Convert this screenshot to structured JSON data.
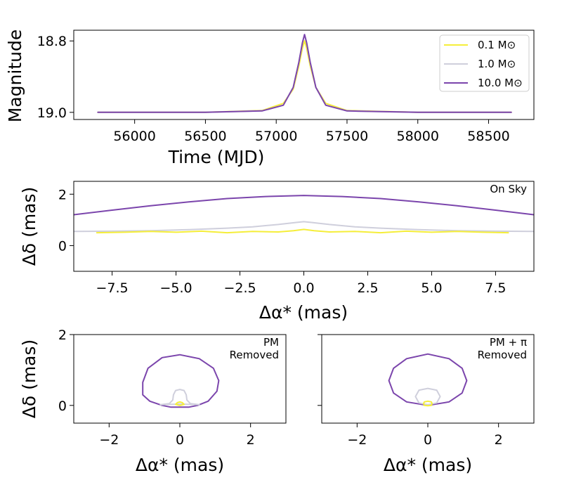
{
  "colors": {
    "m01": "#f5ee3a",
    "m1": "#cfcfdc",
    "m10": "#7b45ac"
  },
  "chart_data": [
    {
      "id": "lightcurve",
      "type": "line",
      "ylabel": "Magnitude",
      "xlabel": "Time (MJD)",
      "xlim": [
        55570,
        58820
      ],
      "ylim": [
        19.02,
        18.77
      ],
      "xticks": [
        {
          "v": 56000,
          "label": "56000"
        },
        {
          "v": 56500,
          "label": "56500"
        },
        {
          "v": 57000,
          "label": "57000"
        },
        {
          "v": 57500,
          "label": "57500"
        },
        {
          "v": 58000,
          "label": "58000"
        },
        {
          "v": 58500,
          "label": "58500"
        }
      ],
      "yticks": [
        {
          "v": 18.8,
          "label": "18.8"
        },
        {
          "v": 19.0,
          "label": "19.0"
        }
      ],
      "legend": {
        "position": "top-right"
      },
      "series": [
        {
          "name": "0.1 M⊙",
          "color_key": "m01",
          "x": [
            55740,
            56500,
            56900,
            57050,
            57120,
            57160,
            57185,
            57200,
            57215,
            57240,
            57280,
            57350,
            57500,
            58000,
            58660
          ],
          "y": [
            19.0,
            19.0,
            18.995,
            18.975,
            18.935,
            18.87,
            18.82,
            18.8,
            18.82,
            18.87,
            18.93,
            18.975,
            18.995,
            19.0,
            19.0
          ]
        },
        {
          "name": "1.0 M⊙",
          "color_key": "m1",
          "x": [
            55740,
            56500,
            56900,
            57050,
            57120,
            57160,
            57185,
            57200,
            57215,
            57240,
            57280,
            57350,
            57500,
            58000,
            58660
          ],
          "y": [
            19.0,
            19.0,
            18.996,
            18.98,
            18.93,
            18.86,
            18.805,
            18.782,
            18.805,
            18.86,
            18.93,
            18.98,
            18.996,
            19.0,
            19.0
          ]
        },
        {
          "name": "10.0 M⊙",
          "color_key": "m10",
          "x": [
            55740,
            56500,
            56900,
            57050,
            57120,
            57160,
            57185,
            57200,
            57215,
            57240,
            57280,
            57350,
            57500,
            58000,
            58660
          ],
          "y": [
            19.0,
            19.0,
            18.996,
            18.98,
            18.93,
            18.86,
            18.805,
            18.782,
            18.805,
            18.86,
            18.93,
            18.98,
            18.996,
            19.0,
            19.0
          ]
        }
      ]
    },
    {
      "id": "onsky",
      "type": "line",
      "ylabel": "Δδ (mas)",
      "xlabel": "Δα* (mas)",
      "xlim": [
        -9,
        9
      ],
      "ylim": [
        -1,
        2.5
      ],
      "xticks": [
        {
          "v": -7.5,
          "label": "−7.5"
        },
        {
          "v": -5,
          "label": "−5.0"
        },
        {
          "v": -2.5,
          "label": "−2.5"
        },
        {
          "v": 0,
          "label": "0.0"
        },
        {
          "v": 2.5,
          "label": "2.5"
        },
        {
          "v": 5,
          "label": "5.0"
        },
        {
          "v": 7.5,
          "label": "7.5"
        }
      ],
      "yticks": [
        {
          "v": 0,
          "label": "0"
        },
        {
          "v": 2,
          "label": "2"
        }
      ],
      "annotation": "On Sky",
      "series": [
        {
          "color_key": "m10",
          "x": [
            -9,
            -7.5,
            -6,
            -4.5,
            -3,
            -1.5,
            0,
            1.5,
            3,
            4.5,
            6,
            7.5,
            9
          ],
          "y": [
            1.2,
            1.38,
            1.55,
            1.7,
            1.83,
            1.91,
            1.95,
            1.91,
            1.83,
            1.7,
            1.55,
            1.38,
            1.2
          ]
        },
        {
          "color_key": "m1",
          "x": [
            -9,
            -7.5,
            -6,
            -4.5,
            -3,
            -2,
            -1,
            -0.3,
            0,
            0.3,
            1,
            2,
            3,
            4.5,
            6,
            7.5,
            9
          ],
          "y": [
            0.55,
            0.56,
            0.58,
            0.62,
            0.68,
            0.73,
            0.82,
            0.9,
            0.93,
            0.9,
            0.82,
            0.73,
            0.68,
            0.62,
            0.58,
            0.56,
            0.55
          ]
        },
        {
          "color_key": "m01",
          "x": [
            -8.1,
            -7,
            -6,
            -5,
            -4,
            -3,
            -2,
            -1,
            -0.4,
            0,
            0.4,
            1,
            2,
            3,
            4,
            5,
            6,
            7,
            8
          ],
          "y": [
            0.5,
            0.52,
            0.55,
            0.52,
            0.56,
            0.5,
            0.55,
            0.53,
            0.58,
            0.63,
            0.58,
            0.53,
            0.55,
            0.5,
            0.56,
            0.52,
            0.55,
            0.52,
            0.5
          ]
        }
      ]
    },
    {
      "id": "pm_removed",
      "type": "line",
      "ylabel": "Δδ (mas)",
      "xlabel": "Δα* (mas)",
      "xlim": [
        -3,
        3
      ],
      "ylim": [
        -0.5,
        2
      ],
      "xticks": [
        {
          "v": -2,
          "label": "−2"
        },
        {
          "v": 0,
          "label": "0"
        },
        {
          "v": 2,
          "label": "2"
        }
      ],
      "yticks": [
        {
          "v": 0,
          "label": "0"
        },
        {
          "v": 2,
          "label": "2"
        }
      ],
      "annotation": [
        "PM",
        "Removed"
      ],
      "series": [
        {
          "color_key": "m10",
          "closed": true,
          "x": [
            0.0,
            0.55,
            0.95,
            1.1,
            1.05,
            0.8,
            0.5,
            0.25,
            0.0,
            -0.25,
            -0.5,
            -0.85,
            -1.05,
            -1.05,
            -0.9,
            -0.5,
            0.0
          ],
          "y": [
            1.43,
            1.32,
            1.05,
            0.7,
            0.4,
            0.12,
            0.0,
            -0.05,
            -0.05,
            -0.05,
            0.0,
            0.12,
            0.3,
            0.65,
            1.05,
            1.35,
            1.43
          ]
        },
        {
          "color_key": "m1",
          "closed": true,
          "x": [
            0.0,
            0.12,
            0.18,
            0.2,
            0.3,
            0.55,
            0.2,
            0.0,
            -0.2,
            -0.55,
            -0.3,
            -0.2,
            -0.18,
            -0.12,
            0.0
          ],
          "y": [
            0.45,
            0.42,
            0.3,
            0.15,
            0.05,
            0.02,
            0.03,
            0.04,
            0.03,
            0.02,
            0.05,
            0.15,
            0.3,
            0.42,
            0.45
          ]
        },
        {
          "color_key": "m01",
          "closed": true,
          "x": [
            0.0,
            0.07,
            0.12,
            0.05,
            0.0,
            -0.05,
            -0.12,
            -0.07,
            0.0
          ],
          "y": [
            0.1,
            0.08,
            0.03,
            0.01,
            0.0,
            0.01,
            0.03,
            0.08,
            0.1
          ]
        }
      ]
    },
    {
      "id": "pm_pi_removed",
      "type": "line",
      "xlabel": "Δα* (mas)",
      "xlim": [
        -3,
        3
      ],
      "ylim": [
        -0.5,
        2
      ],
      "xticks": [
        {
          "v": -2,
          "label": "−2"
        },
        {
          "v": 0,
          "label": "0"
        },
        {
          "v": 2,
          "label": "2"
        }
      ],
      "yticks": [
        {
          "v": 0,
          "label": ""
        },
        {
          "v": 2,
          "label": ""
        }
      ],
      "annotation": [
        "PM + π",
        "Removed"
      ],
      "series": [
        {
          "color_key": "m10",
          "closed": true,
          "x": [
            0.0,
            0.6,
            0.97,
            1.1,
            0.97,
            0.6,
            0.0,
            -0.6,
            -0.97,
            -1.1,
            -0.97,
            -0.6,
            0.0
          ],
          "y": [
            1.45,
            1.32,
            1.05,
            0.7,
            0.35,
            0.1,
            0.0,
            0.1,
            0.35,
            0.7,
            1.05,
            1.32,
            1.45
          ]
        },
        {
          "color_key": "m1",
          "closed": true,
          "x": [
            0.0,
            0.25,
            0.35,
            0.25,
            0.0,
            -0.25,
            -0.35,
            -0.25,
            0.0
          ],
          "y": [
            0.48,
            0.43,
            0.25,
            0.07,
            0.02,
            0.07,
            0.25,
            0.43,
            0.48
          ]
        },
        {
          "color_key": "m01",
          "closed": true,
          "x": [
            0.0,
            0.1,
            0.12,
            0.1,
            0.0,
            -0.1,
            -0.12,
            -0.1,
            0.0
          ],
          "y": [
            0.12,
            0.1,
            0.05,
            0.0,
            -0.01,
            0.0,
            0.05,
            0.1,
            0.12
          ]
        }
      ]
    }
  ]
}
